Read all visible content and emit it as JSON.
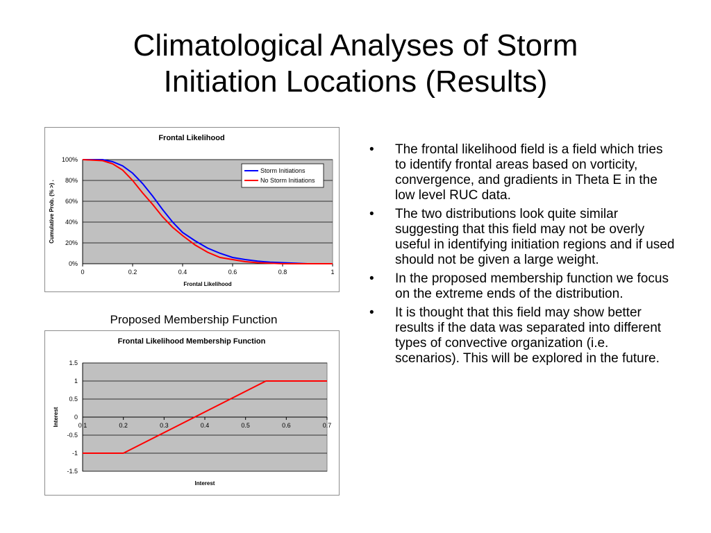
{
  "slide": {
    "title_line1": "Climatological Analyses of Storm",
    "title_line2": "Initiation Locations (Results)",
    "caption": "Proposed Membership Function"
  },
  "bullets": [
    "The frontal likelihood field is a field which tries to identify frontal areas based on vorticity, convergence, and gradients in Theta E in the low level RUC data.",
    "The two distributions look quite similar suggesting that this field may not be overly useful in identifying initiation regions and if used should not be given a large weight.",
    "In the proposed membership function we focus on the extreme ends of the distribution.",
    "It is thought that this field may show better results if the data was separated into different types of convective organization (i.e. scenarios).  This will be explored in the future."
  ],
  "chart_data": [
    {
      "type": "line",
      "title": "Frontal Likelihood",
      "xlabel": "Frontal Likelihood",
      "ylabel": "Cumulative Prob. (% >) .",
      "xlim": [
        0,
        1
      ],
      "ylim": [
        0,
        100
      ],
      "x_ticks": [
        "0",
        "0.2",
        "0.4",
        "0.6",
        "0.8",
        "1"
      ],
      "y_ticks": [
        "0%",
        "20%",
        "40%",
        "60%",
        "80%",
        "100%"
      ],
      "grid": true,
      "legend_position": "top-right",
      "plot_background": "#c0c0c0",
      "series": [
        {
          "name": "Storm Initiations",
          "color": "#0000ff",
          "x": [
            0,
            0.08,
            0.12,
            0.16,
            0.2,
            0.24,
            0.28,
            0.32,
            0.36,
            0.4,
            0.45,
            0.5,
            0.55,
            0.6,
            0.65,
            0.7,
            0.75,
            0.8,
            0.85,
            0.9,
            1.0
          ],
          "y": [
            100,
            100,
            98,
            94,
            87,
            77,
            65,
            52,
            40,
            30,
            22,
            15,
            10,
            6,
            4,
            2.5,
            1.5,
            1,
            0.5,
            0,
            0
          ]
        },
        {
          "name": "No Storm Initiations",
          "color": "#ff0000",
          "x": [
            0,
            0.08,
            0.12,
            0.16,
            0.2,
            0.24,
            0.28,
            0.32,
            0.36,
            0.4,
            0.45,
            0.5,
            0.55,
            0.6,
            0.65,
            0.7,
            0.75,
            0.8,
            0.85,
            1.0
          ],
          "y": [
            100,
            99,
            96,
            90,
            80,
            68,
            57,
            45,
            35,
            27,
            18,
            11,
            6,
            4,
            2,
            1,
            0.5,
            0,
            0,
            0
          ]
        }
      ]
    },
    {
      "type": "line",
      "title": "Frontal Likelihood Membership Function",
      "xlabel": "Interest",
      "ylabel": "Interest",
      "xlim": [
        0.1,
        0.7
      ],
      "ylim": [
        -1.5,
        1.5
      ],
      "x_ticks": [
        "0.1",
        "0.2",
        "0.3",
        "0.4",
        "0.5",
        "0.6",
        "0.7"
      ],
      "y_ticks": [
        "-1.5",
        "-1",
        "-0.5",
        "0",
        "0.5",
        "1",
        "1.5"
      ],
      "grid": true,
      "plot_background": "#c0c0c0",
      "series": [
        {
          "color": "#ff0000",
          "x": [
            0.1,
            0.2,
            0.55,
            0.7
          ],
          "y": [
            -1,
            -1,
            1,
            1
          ]
        }
      ]
    }
  ]
}
